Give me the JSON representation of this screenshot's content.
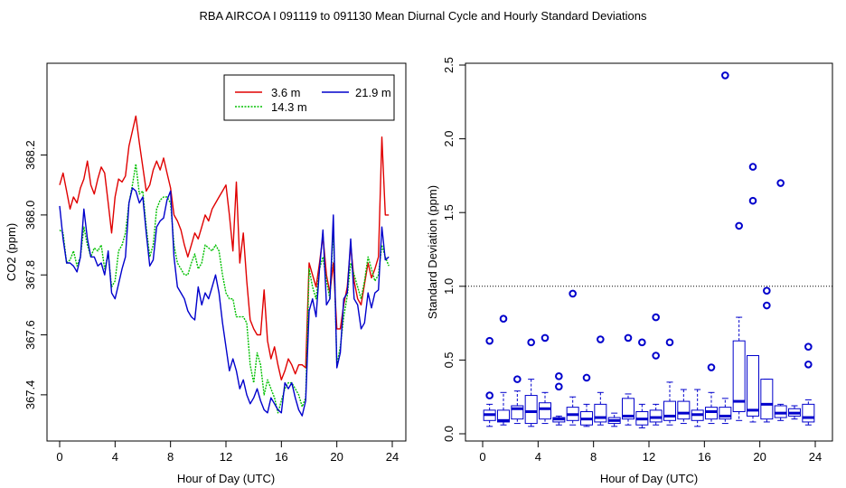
{
  "figure_title": "RBA   AIRCOA I   091119 to 091130   Mean Diurnal Cycle and Hourly Standard Deviations",
  "colors": {
    "s36": "#e00000",
    "s143": "#00c000",
    "s219": "#0000cc",
    "box": "#0000cc",
    "axis": "#000000"
  },
  "chart_data": [
    {
      "type": "line",
      "xlabel": "Hour of Day (UTC)",
      "ylabel": "CO2 (ppm)",
      "xlim": [
        0,
        24
      ],
      "ylim": [
        367.27,
        368.47
      ],
      "x_ticks": [
        0,
        4,
        8,
        12,
        16,
        20,
        24
      ],
      "x_tick_labels": [
        "0",
        "4",
        "8",
        "12",
        "16",
        "20",
        "24"
      ],
      "y_ticks": [
        367.4,
        367.6,
        367.8,
        368.0,
        368.2
      ],
      "y_tick_labels": [
        "367.4",
        "367.6",
        "367.8",
        "368.0",
        "368.2"
      ],
      "legend_position": "top-right",
      "legend": [
        {
          "name": "3.6 m",
          "color": "#e00000"
        },
        {
          "name": "14.3 m",
          "color": "#00c000"
        },
        {
          "name": "21.9 m",
          "color": "#0000cc"
        }
      ],
      "x": [
        0.0,
        0.25,
        0.5,
        0.75,
        1.0,
        1.25,
        1.5,
        1.75,
        2.0,
        2.25,
        2.5,
        2.75,
        3.0,
        3.25,
        3.5,
        3.75,
        4.0,
        4.25,
        4.5,
        4.75,
        5.0,
        5.25,
        5.5,
        5.75,
        6.0,
        6.25,
        6.5,
        6.75,
        7.0,
        7.25,
        7.5,
        7.75,
        8.0,
        8.25,
        8.5,
        8.75,
        9.0,
        9.25,
        9.5,
        9.75,
        10.0,
        10.25,
        10.5,
        10.75,
        11.0,
        11.25,
        11.5,
        11.75,
        12.0,
        12.25,
        12.5,
        12.75,
        13.0,
        13.25,
        13.5,
        13.75,
        14.0,
        14.25,
        14.5,
        14.75,
        15.0,
        15.25,
        15.5,
        15.75,
        16.0,
        16.25,
        16.5,
        16.75,
        17.0,
        17.25,
        17.5,
        17.75,
        18.0,
        18.25,
        18.5,
        18.75,
        19.0,
        19.25,
        19.5,
        19.75,
        20.0,
        20.25,
        20.5,
        20.75,
        21.0,
        21.25,
        21.5,
        21.75,
        22.0,
        22.25,
        22.5,
        22.75,
        23.0,
        23.25,
        23.5,
        23.75
      ],
      "series": [
        {
          "name": "3.6 m",
          "color": "#e00000",
          "values": [
            368.1,
            368.14,
            368.08,
            368.02,
            368.06,
            368.04,
            368.09,
            368.12,
            368.18,
            368.1,
            368.07,
            368.12,
            368.16,
            368.14,
            368.04,
            367.94,
            368.06,
            368.12,
            368.11,
            368.13,
            368.23,
            368.28,
            368.33,
            368.24,
            368.16,
            368.08,
            368.1,
            368.15,
            368.18,
            368.15,
            368.19,
            368.14,
            368.09,
            368.0,
            367.98,
            367.95,
            367.9,
            367.86,
            367.9,
            367.94,
            367.92,
            367.96,
            368.0,
            367.98,
            368.02,
            368.04,
            368.06,
            368.08,
            368.1,
            368.0,
            367.88,
            368.11,
            367.84,
            367.94,
            367.78,
            367.65,
            367.62,
            367.6,
            367.6,
            367.75,
            367.58,
            367.52,
            367.56,
            367.5,
            367.45,
            367.48,
            367.52,
            367.5,
            367.47,
            367.5,
            367.5,
            367.49,
            367.84,
            367.8,
            367.76,
            367.84,
            367.93,
            367.8,
            367.74,
            367.84,
            367.62,
            367.62,
            367.7,
            367.76,
            367.9,
            367.78,
            367.72,
            367.7,
            367.77,
            367.84,
            367.79,
            367.82,
            367.86,
            368.26,
            368.0,
            368.0
          ]
        },
        {
          "name": "14.3 m",
          "color": "#00c000",
          "values": [
            367.95,
            367.94,
            367.84,
            367.85,
            367.88,
            367.83,
            367.86,
            367.96,
            367.9,
            367.86,
            367.89,
            367.88,
            367.9,
            367.82,
            367.87,
            367.76,
            367.78,
            367.88,
            367.9,
            367.94,
            368.04,
            368.1,
            368.17,
            368.07,
            368.08,
            367.96,
            367.86,
            367.9,
            368.02,
            368.05,
            368.06,
            368.06,
            368.04,
            367.9,
            367.84,
            367.82,
            367.8,
            367.8,
            367.84,
            367.87,
            367.82,
            367.84,
            367.9,
            367.89,
            367.88,
            367.9,
            367.88,
            367.8,
            367.74,
            367.72,
            367.72,
            367.66,
            367.66,
            367.66,
            367.64,
            367.5,
            367.44,
            367.54,
            367.5,
            367.4,
            367.45,
            367.42,
            367.39,
            367.34,
            367.38,
            367.42,
            367.44,
            367.44,
            367.42,
            367.4,
            367.36,
            367.39,
            367.82,
            367.76,
            367.72,
            367.82,
            367.86,
            367.78,
            367.72,
            367.96,
            367.5,
            367.56,
            367.66,
            367.73,
            367.84,
            367.8,
            367.76,
            367.72,
            367.78,
            367.86,
            367.82,
            367.78,
            367.8,
            367.9,
            367.86,
            367.83
          ]
        },
        {
          "name": "21.9 m",
          "color": "#0000cc",
          "values": [
            368.03,
            367.92,
            367.84,
            367.84,
            367.83,
            367.81,
            367.86,
            368.02,
            367.92,
            367.86,
            367.86,
            367.83,
            367.84,
            367.8,
            367.88,
            367.74,
            367.72,
            367.77,
            367.82,
            367.86,
            368.04,
            368.09,
            368.08,
            368.04,
            368.06,
            367.94,
            367.83,
            367.85,
            367.96,
            367.98,
            367.99,
            368.05,
            368.08,
            367.86,
            367.76,
            367.74,
            367.72,
            367.68,
            367.66,
            367.65,
            367.76,
            367.7,
            367.74,
            367.72,
            367.76,
            367.8,
            367.74,
            367.64,
            367.56,
            367.48,
            367.52,
            367.48,
            367.42,
            367.45,
            367.4,
            367.37,
            367.39,
            367.42,
            367.38,
            367.35,
            367.34,
            367.39,
            367.37,
            367.35,
            367.34,
            367.44,
            367.42,
            367.44,
            367.39,
            367.35,
            367.33,
            367.38,
            367.68,
            367.72,
            367.66,
            367.82,
            367.95,
            367.7,
            367.72,
            368.0,
            367.49,
            367.54,
            367.72,
            367.74,
            367.92,
            367.72,
            367.7,
            367.62,
            367.64,
            367.74,
            367.69,
            367.74,
            367.75,
            367.96,
            367.85,
            367.86
          ]
        }
      ]
    },
    {
      "type": "box",
      "xlabel": "Hour of Day (UTC)",
      "ylabel": "Standard Deviation (ppm)",
      "xlim": [
        -1.6,
        25.6
      ],
      "ylim": [
        -0.03,
        2.55
      ],
      "x_ticks": [
        0,
        4,
        8,
        12,
        16,
        20,
        24
      ],
      "x_tick_labels": [
        "0",
        "4",
        "8",
        "12",
        "16",
        "20",
        "24"
      ],
      "y_ticks": [
        0.0,
        0.5,
        1.0,
        1.5,
        2.0,
        2.5
      ],
      "y_tick_labels": [
        "0.0",
        "0.5",
        "1.0",
        "1.5",
        "2.0",
        "2.5"
      ],
      "reference_line_y": 1.0,
      "boxes": [
        {
          "hour": 0.5,
          "whisker_low": 0.05,
          "q1": 0.09,
          "median": 0.13,
          "q3": 0.16,
          "whisker_high": 0.2,
          "outliers": [
            0.26,
            0.63
          ]
        },
        {
          "hour": 1.5,
          "whisker_low": 0.06,
          "q1": 0.08,
          "median": 0.09,
          "q3": 0.16,
          "whisker_high": 0.28,
          "outliers": [
            0.78
          ]
        },
        {
          "hour": 2.5,
          "whisker_low": 0.07,
          "q1": 0.1,
          "median": 0.17,
          "q3": 0.19,
          "whisker_high": 0.29,
          "outliers": [
            0.37
          ]
        },
        {
          "hour": 3.5,
          "whisker_low": 0.05,
          "q1": 0.07,
          "median": 0.15,
          "q3": 0.26,
          "whisker_high": 0.37,
          "outliers": [
            0.62
          ]
        },
        {
          "hour": 4.5,
          "whisker_low": 0.07,
          "q1": 0.1,
          "median": 0.17,
          "q3": 0.21,
          "whisker_high": 0.28,
          "outliers": [
            0.65
          ]
        },
        {
          "hour": 5.5,
          "whisker_low": 0.06,
          "q1": 0.08,
          "median": 0.1,
          "q3": 0.11,
          "whisker_high": 0.12,
          "outliers": [
            0.32,
            0.39
          ]
        },
        {
          "hour": 6.5,
          "whisker_low": 0.06,
          "q1": 0.09,
          "median": 0.13,
          "q3": 0.18,
          "whisker_high": 0.25,
          "outliers": [
            0.95
          ]
        },
        {
          "hour": 7.5,
          "whisker_low": 0.05,
          "q1": 0.06,
          "median": 0.1,
          "q3": 0.15,
          "whisker_high": 0.2,
          "outliers": [
            0.38
          ]
        },
        {
          "hour": 8.5,
          "whisker_low": 0.06,
          "q1": 0.08,
          "median": 0.11,
          "q3": 0.2,
          "whisker_high": 0.28,
          "outliers": [
            0.64
          ]
        },
        {
          "hour": 9.5,
          "whisker_low": 0.05,
          "q1": 0.07,
          "median": 0.09,
          "q3": 0.11,
          "whisker_high": 0.14,
          "outliers": []
        },
        {
          "hour": 10.5,
          "whisker_low": 0.06,
          "q1": 0.1,
          "median": 0.12,
          "q3": 0.24,
          "whisker_high": 0.27,
          "outliers": [
            0.65
          ]
        },
        {
          "hour": 11.5,
          "whisker_low": 0.04,
          "q1": 0.06,
          "median": 0.1,
          "q3": 0.15,
          "whisker_high": 0.2,
          "outliers": [
            0.62
          ]
        },
        {
          "hour": 12.5,
          "whisker_low": 0.06,
          "q1": 0.08,
          "median": 0.11,
          "q3": 0.16,
          "whisker_high": 0.2,
          "outliers": [
            0.53,
            0.79
          ]
        },
        {
          "hour": 13.5,
          "whisker_low": 0.06,
          "q1": 0.09,
          "median": 0.12,
          "q3": 0.22,
          "whisker_high": 0.35,
          "outliers": [
            0.62
          ]
        },
        {
          "hour": 14.5,
          "whisker_low": 0.07,
          "q1": 0.1,
          "median": 0.14,
          "q3": 0.22,
          "whisker_high": 0.3,
          "outliers": []
        },
        {
          "hour": 15.5,
          "whisker_low": 0.05,
          "q1": 0.09,
          "median": 0.13,
          "q3": 0.16,
          "whisker_high": 0.3,
          "outliers": []
        },
        {
          "hour": 16.5,
          "whisker_low": 0.07,
          "q1": 0.1,
          "median": 0.15,
          "q3": 0.18,
          "whisker_high": 0.28,
          "outliers": [
            0.45
          ]
        },
        {
          "hour": 17.5,
          "whisker_low": 0.07,
          "q1": 0.1,
          "median": 0.12,
          "q3": 0.18,
          "whisker_high": 0.24,
          "outliers": [
            2.43
          ]
        },
        {
          "hour": 18.5,
          "whisker_low": 0.09,
          "q1": 0.15,
          "median": 0.22,
          "q3": 0.63,
          "whisker_high": 0.79,
          "outliers": [
            1.41
          ]
        },
        {
          "hour": 19.5,
          "whisker_low": 0.08,
          "q1": 0.12,
          "median": 0.16,
          "q3": 0.53,
          "whisker_high": 0.53,
          "outliers": [
            1.58,
            1.81
          ]
        },
        {
          "hour": 20.5,
          "whisker_low": 0.08,
          "q1": 0.1,
          "median": 0.2,
          "q3": 0.37,
          "whisker_high": 0.37,
          "outliers": [
            0.87,
            0.97
          ]
        },
        {
          "hour": 21.5,
          "whisker_low": 0.09,
          "q1": 0.11,
          "median": 0.14,
          "q3": 0.19,
          "whisker_high": 0.2,
          "outliers": [
            1.7
          ]
        },
        {
          "hour": 22.5,
          "whisker_low": 0.1,
          "q1": 0.12,
          "median": 0.14,
          "q3": 0.17,
          "whisker_high": 0.19,
          "outliers": []
        },
        {
          "hour": 23.5,
          "whisker_low": 0.06,
          "q1": 0.08,
          "median": 0.11,
          "q3": 0.2,
          "whisker_high": 0.23,
          "outliers": [
            0.47,
            0.59
          ]
        }
      ]
    }
  ]
}
